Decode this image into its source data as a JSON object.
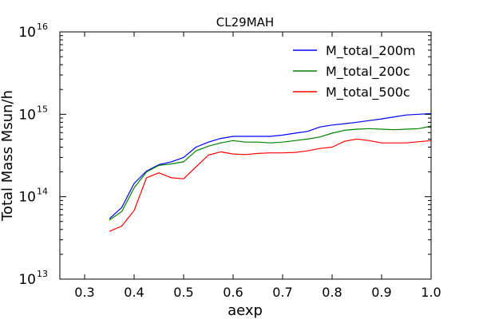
{
  "chart_data": {
    "type": "line",
    "title": "CL29MAH",
    "xlabel": "aexp",
    "ylabel": "Total Mass Msun/h",
    "xlim": [
      0.25,
      1.0
    ],
    "ylim": [
      10000000000000.0,
      1e+16
    ],
    "yscale": "log",
    "grid": false,
    "legend_position": "top-right",
    "x_ticks": [
      {
        "value": 0.3,
        "label": "0.3"
      },
      {
        "value": 0.4,
        "label": "0.4"
      },
      {
        "value": 0.5,
        "label": "0.5"
      },
      {
        "value": 0.6,
        "label": "0.6"
      },
      {
        "value": 0.7,
        "label": "0.7"
      },
      {
        "value": 0.8,
        "label": "0.8"
      },
      {
        "value": 0.9,
        "label": "0.9"
      },
      {
        "value": 1.0,
        "label": "1.0"
      }
    ],
    "y_ticks": [
      {
        "value": 10000000000000.0,
        "base": "10",
        "exp": "13"
      },
      {
        "value": 100000000000000.0,
        "base": "10",
        "exp": "14"
      },
      {
        "value": 1000000000000000.0,
        "base": "10",
        "exp": "15"
      },
      {
        "value": 1e+16,
        "base": "10",
        "exp": "16"
      }
    ],
    "x": [
      0.35,
      0.375,
      0.4,
      0.425,
      0.45,
      0.475,
      0.5,
      0.525,
      0.55,
      0.575,
      0.6,
      0.625,
      0.65,
      0.675,
      0.7,
      0.725,
      0.75,
      0.775,
      0.8,
      0.825,
      0.85,
      0.875,
      0.9,
      0.925,
      0.95,
      0.975,
      1.0
    ],
    "series": [
      {
        "name": "M_total_200m",
        "color": "#0000ff",
        "values": [
          54000000000000.0,
          74000000000000.0,
          145000000000000.0,
          205000000000000.0,
          245000000000000.0,
          265000000000000.0,
          300000000000000.0,
          400000000000000.0,
          460000000000000.0,
          510000000000000.0,
          540000000000000.0,
          540000000000000.0,
          540000000000000.0,
          540000000000000.0,
          560000000000000.0,
          590000000000000.0,
          620000000000000.0,
          700000000000000.0,
          740000000000000.0,
          770000000000000.0,
          800000000000000.0,
          840000000000000.0,
          880000000000000.0,
          930000000000000.0,
          980000000000000.0,
          1000000000000000.0,
          1020000000000000.0
        ]
      },
      {
        "name": "M_total_200c",
        "color": "#008000",
        "values": [
          52000000000000.0,
          66000000000000.0,
          128000000000000.0,
          200000000000000.0,
          240000000000000.0,
          250000000000000.0,
          265000000000000.0,
          360000000000000.0,
          410000000000000.0,
          450000000000000.0,
          480000000000000.0,
          460000000000000.0,
          460000000000000.0,
          450000000000000.0,
          460000000000000.0,
          480000000000000.0,
          500000000000000.0,
          530000000000000.0,
          590000000000000.0,
          640000000000000.0,
          660000000000000.0,
          670000000000000.0,
          660000000000000.0,
          650000000000000.0,
          660000000000000.0,
          670000000000000.0,
          720000000000000.0
        ]
      },
      {
        "name": "M_total_500c",
        "color": "#ff0000",
        "values": [
          38000000000000.0,
          44000000000000.0,
          68000000000000.0,
          170000000000000.0,
          195000000000000.0,
          170000000000000.0,
          165000000000000.0,
          230000000000000.0,
          320000000000000.0,
          350000000000000.0,
          330000000000000.0,
          325000000000000.0,
          335000000000000.0,
          340000000000000.0,
          340000000000000.0,
          345000000000000.0,
          360000000000000.0,
          385000000000000.0,
          400000000000000.0,
          470000000000000.0,
          500000000000000.0,
          480000000000000.0,
          450000000000000.0,
          450000000000000.0,
          450000000000000.0,
          465000000000000.0,
          480000000000000.0
        ]
      }
    ]
  }
}
